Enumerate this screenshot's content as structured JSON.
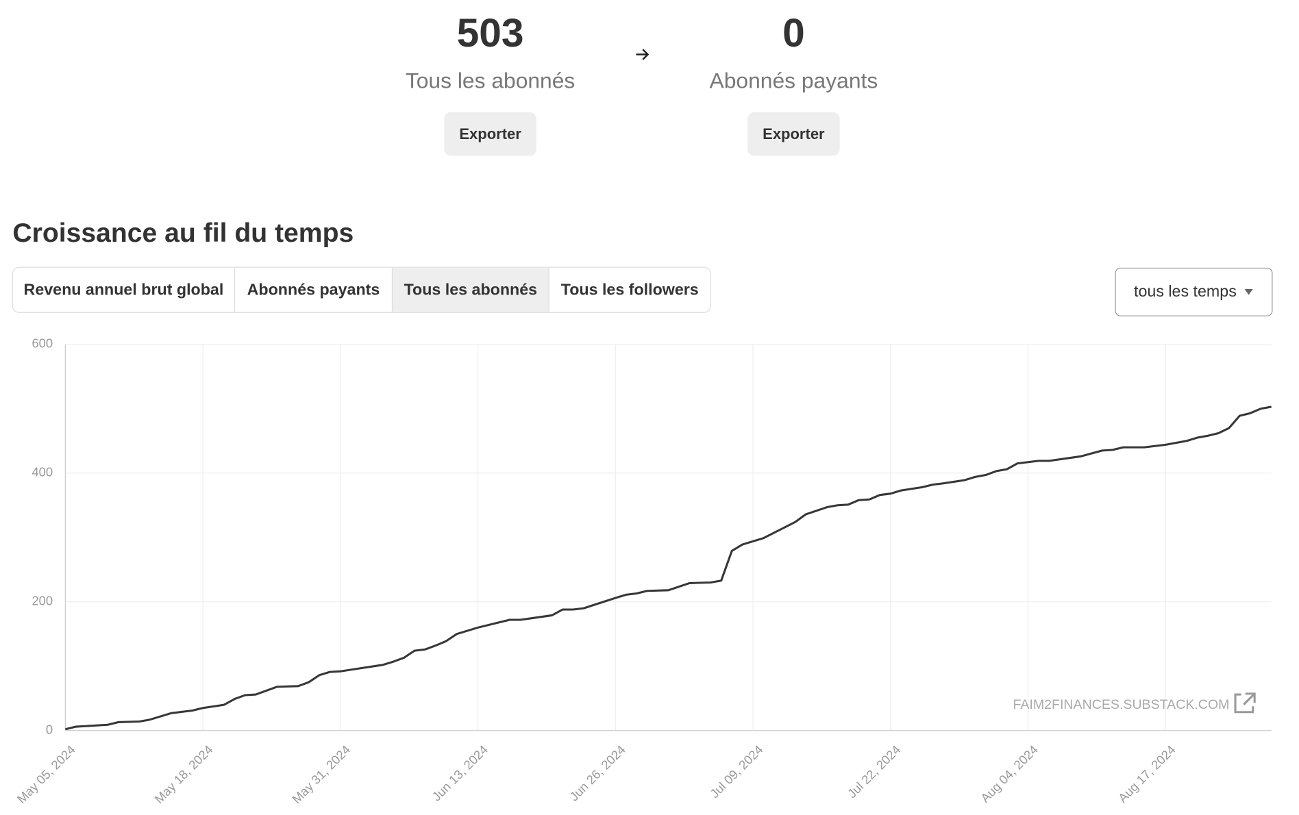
{
  "stats": [
    {
      "value": 503,
      "label": "Tous les abonnés",
      "button": "Exporter"
    },
    {
      "value": 0,
      "label": "Abonnés payants",
      "button": "Exporter"
    }
  ],
  "section_title": "Croissance au fil du temps",
  "tabs": [
    {
      "label": "Revenu annuel brut global",
      "active": false
    },
    {
      "label": "Abonnés payants",
      "active": false
    },
    {
      "label": "Tous les abonnés",
      "active": true
    },
    {
      "label": "Tous les followers",
      "active": false
    }
  ],
  "dropdown": "tous les temps",
  "chart_data": {
    "type": "line",
    "color": "#363737",
    "grid": true,
    "annotation": "FAIM2FINANCES.SUBSTACK.COM",
    "xlim": [
      "2024-05-05",
      "2024-08-27"
    ],
    "xticks": [
      {
        "value": "2024-05-05",
        "label": "May 05, 2024"
      },
      {
        "value": "2024-05-18",
        "label": "May 18, 2024"
      },
      {
        "value": "2024-05-31",
        "label": "May 31, 2024"
      },
      {
        "value": "2024-06-13",
        "label": "Jun 13, 2024"
      },
      {
        "value": "2024-06-26",
        "label": "Jun 26, 2024"
      },
      {
        "value": "2024-07-09",
        "label": "Jul 09, 2024"
      },
      {
        "value": "2024-07-22",
        "label": "Jul 22, 2024"
      },
      {
        "value": "2024-08-04",
        "label": "Aug 04, 2024"
      },
      {
        "value": "2024-08-17",
        "label": "Aug 17, 2024"
      }
    ],
    "ylim": [
      0,
      600
    ],
    "yticks": [
      0,
      200,
      400,
      600
    ],
    "x": [
      "2024-05-05",
      "2024-05-06",
      "2024-05-09",
      "2024-05-10",
      "2024-05-12",
      "2024-05-13",
      "2024-05-15",
      "2024-05-17",
      "2024-05-18",
      "2024-05-20",
      "2024-05-21",
      "2024-05-22",
      "2024-05-23",
      "2024-05-24",
      "2024-05-25",
      "2024-05-27",
      "2024-05-28",
      "2024-05-29",
      "2024-05-30",
      "2024-05-31",
      "2024-06-04",
      "2024-06-05",
      "2024-06-06",
      "2024-06-07",
      "2024-06-08",
      "2024-06-09",
      "2024-06-10",
      "2024-06-11",
      "2024-06-13",
      "2024-06-15",
      "2024-06-16",
      "2024-06-17",
      "2024-06-20",
      "2024-06-21",
      "2024-06-22",
      "2024-06-23",
      "2024-06-26",
      "2024-06-27",
      "2024-06-28",
      "2024-06-29",
      "2024-07-01",
      "2024-07-03",
      "2024-07-05",
      "2024-07-06",
      "2024-07-07",
      "2024-07-08",
      "2024-07-10",
      "2024-07-13",
      "2024-07-14",
      "2024-07-16",
      "2024-07-17",
      "2024-07-18",
      "2024-07-19",
      "2024-07-20",
      "2024-07-21",
      "2024-07-22",
      "2024-07-23",
      "2024-07-25",
      "2024-07-26",
      "2024-07-27",
      "2024-07-29",
      "2024-07-30",
      "2024-07-31",
      "2024-08-01",
      "2024-08-02",
      "2024-08-03",
      "2024-08-05",
      "2024-08-06",
      "2024-08-09",
      "2024-08-11",
      "2024-08-12",
      "2024-08-13",
      "2024-08-15",
      "2024-08-17",
      "2024-08-19",
      "2024-08-20",
      "2024-08-21",
      "2024-08-22",
      "2024-08-23",
      "2024-08-24",
      "2024-08-25",
      "2024-08-26",
      "2024-08-27"
    ],
    "values": [
      2,
      6,
      9,
      13,
      14,
      17,
      27,
      31,
      35,
      40,
      49,
      55,
      56,
      62,
      68,
      69,
      75,
      86,
      91,
      92,
      102,
      107,
      113,
      124,
      126,
      132,
      139,
      150,
      160,
      168,
      172,
      172,
      179,
      188,
      188,
      190,
      206,
      211,
      213,
      217,
      218,
      229,
      230,
      233,
      279,
      289,
      299,
      324,
      336,
      347,
      350,
      351,
      358,
      359,
      366,
      368,
      373,
      378,
      382,
      384,
      389,
      394,
      397,
      403,
      406,
      415,
      419,
      419,
      426,
      435,
      436,
      440,
      440,
      444,
      450,
      455,
      458,
      462,
      470,
      489,
      493,
      500,
      503
    ]
  }
}
